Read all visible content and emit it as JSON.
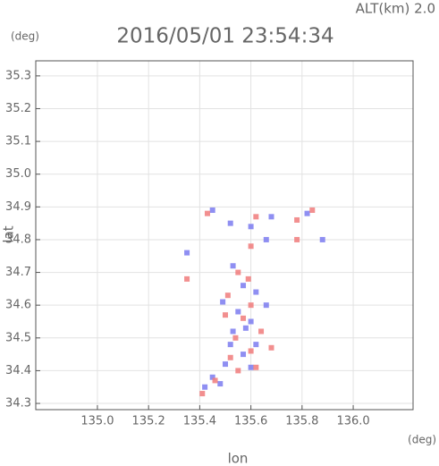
{
  "chart_data": {
    "type": "scatter",
    "title": "2016/05/01 23:54:34",
    "subtitle": "ALT(km) 2.0",
    "y_unit": "(deg)",
    "x_unit": "(deg)",
    "x_label": "lon",
    "y_label": "lat",
    "xlim": [
      134.759,
      136.234
    ],
    "ylim": [
      34.281,
      35.346
    ],
    "xticks": [
      {
        "value": 135.0,
        "label": "135.0"
      },
      135.2,
      135.4,
      135.6,
      135.8,
      {
        "value": 136.0,
        "label": "136.0"
      }
    ],
    "yticks": [
      35.3,
      35.2,
      35.1,
      {
        "value": 35.0,
        "label": "35.0"
      },
      34.9,
      34.8,
      34.7,
      34.6,
      34.5,
      34.4,
      34.3
    ],
    "grid": true,
    "series": [
      {
        "color": "#7b7bf0",
        "x": [
          135.45,
          135.52,
          135.6,
          135.68,
          135.82,
          135.66,
          135.53,
          135.57,
          135.62,
          135.49,
          135.55,
          135.6,
          135.53,
          135.62,
          135.57,
          135.5,
          135.6,
          135.45,
          135.42,
          135.48,
          135.35,
          135.88,
          135.58,
          135.66,
          135.52
        ],
        "y": [
          34.89,
          34.85,
          34.84,
          34.87,
          34.88,
          34.8,
          34.72,
          34.66,
          34.64,
          34.61,
          34.58,
          34.55,
          34.52,
          34.48,
          34.45,
          34.42,
          34.41,
          34.38,
          34.35,
          34.36,
          34.76,
          34.8,
          34.53,
          34.6,
          34.48
        ]
      },
      {
        "color": "#f07b7b",
        "x": [
          135.43,
          135.62,
          135.78,
          135.84,
          135.6,
          135.78,
          135.55,
          135.59,
          135.51,
          135.6,
          135.57,
          135.64,
          135.54,
          135.6,
          135.52,
          135.55,
          135.62,
          135.46,
          135.41,
          135.35,
          135.68,
          135.5
        ],
        "y": [
          34.88,
          34.87,
          34.86,
          34.89,
          34.78,
          34.8,
          34.7,
          34.68,
          34.63,
          34.6,
          34.56,
          34.52,
          34.5,
          34.46,
          34.44,
          34.4,
          34.41,
          34.37,
          34.33,
          34.68,
          34.47,
          34.57
        ]
      }
    ]
  }
}
